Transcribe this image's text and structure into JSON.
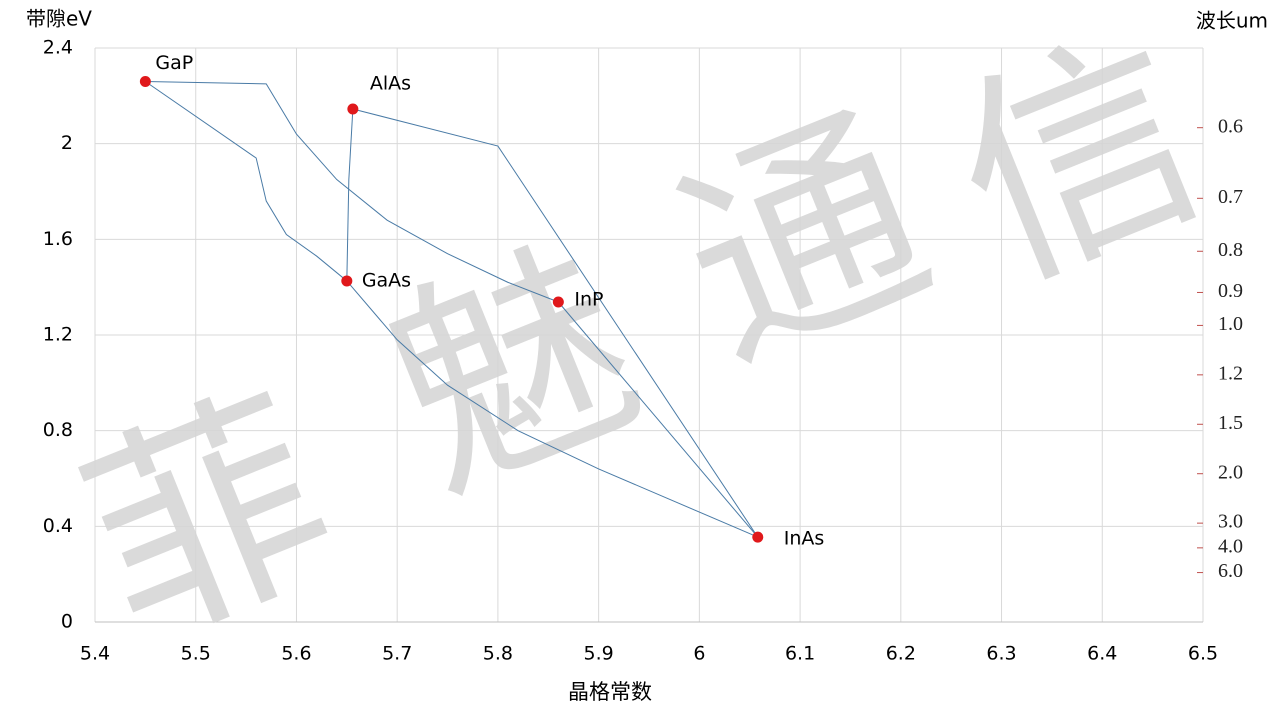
{
  "chart_data": {
    "type": "scatter",
    "ylabel": "带隙eV",
    "y2label": "波长um",
    "xlabel": "晶格常数",
    "watermark": [
      "菲",
      "魅",
      "通",
      "信"
    ],
    "xlim": [
      5.4,
      6.5
    ],
    "xticks": [
      5.4,
      5.5,
      5.6,
      5.7,
      5.8,
      5.9,
      6,
      6.1,
      6.2,
      6.3,
      6.4,
      6.5
    ],
    "ylim": [
      0,
      2.4
    ],
    "yticks": [
      0,
      0.4,
      0.8,
      1.2,
      1.6,
      2,
      2.4
    ],
    "y2scale": "reciprocal",
    "y2lim": [
      null,
      0.5167
    ],
    "y2ticks": [
      0.6,
      0.7,
      0.8,
      0.9,
      {
        "value": 1,
        "label": "1.0"
      },
      1.2,
      1.5,
      {
        "value": 2,
        "label": "2.0"
      },
      {
        "value": 3,
        "label": "3.0"
      },
      {
        "value": 4,
        "label": "4.0"
      },
      {
        "value": 6,
        "label": "6.0"
      }
    ],
    "grid": true,
    "points": {
      "color": "#e0181b",
      "labels": [
        "GaP",
        "AlAs",
        "GaAs",
        "InP",
        "InAs"
      ],
      "x": [
        5.45,
        5.656,
        5.65,
        5.86,
        6.058
      ],
      "values": [
        2.26,
        2.145,
        1.426,
        1.338,
        0.355
      ]
    },
    "curve_color": "#4a7ba6",
    "curves": [
      {
        "x": [
          5.45,
          5.57,
          5.6,
          5.64,
          5.69,
          5.75,
          5.81,
          5.86
        ],
        "values": [
          2.26,
          2.25,
          2.04,
          1.85,
          1.68,
          1.54,
          1.42,
          1.338
        ]
      },
      {
        "x": [
          5.45,
          5.56,
          5.57,
          5.59,
          5.62,
          5.65
        ],
        "values": [
          2.26,
          1.94,
          1.76,
          1.62,
          1.53,
          1.426
        ]
      },
      {
        "x": [
          5.656,
          5.8,
          6.058
        ],
        "values": [
          2.145,
          1.99,
          0.355
        ]
      },
      {
        "x": [
          5.656,
          5.652,
          5.65
        ],
        "values": [
          2.145,
          1.85,
          1.426
        ]
      },
      {
        "x": [
          5.65,
          5.7,
          5.75,
          5.82,
          5.9,
          6.058
        ],
        "values": [
          1.426,
          1.18,
          0.99,
          0.8,
          0.64,
          0.355
        ]
      },
      {
        "x": [
          5.86,
          6.058
        ],
        "values": [
          1.338,
          0.355
        ]
      }
    ]
  }
}
